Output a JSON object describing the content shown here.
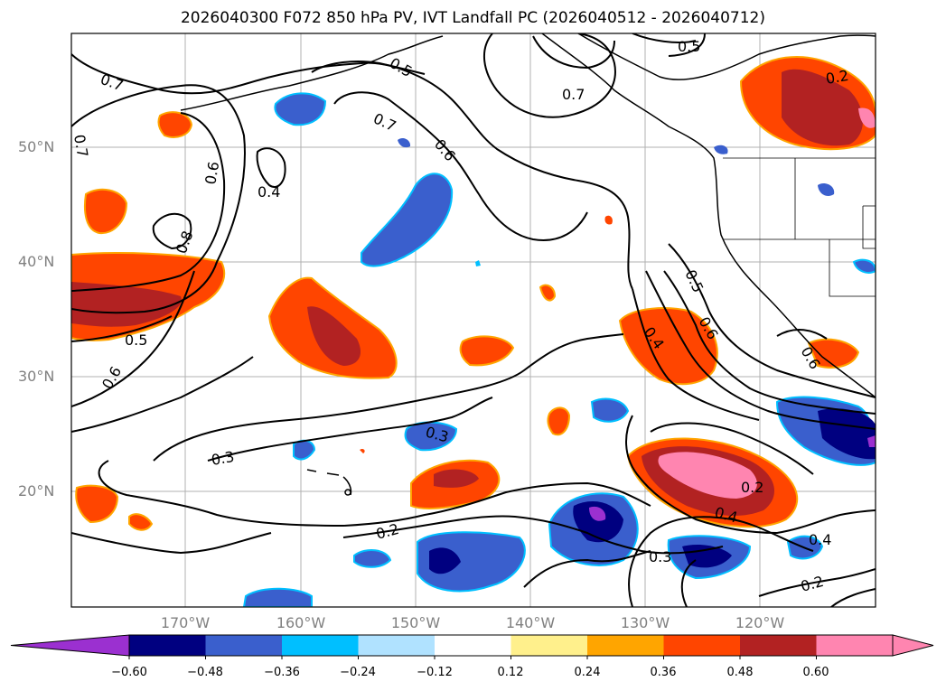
{
  "title": "2026040300 F072 850 hPa PV, IVT Landfall PC (2026040512 - 2026040712)",
  "lat_labels": [
    "50°N",
    "40°N",
    "30°N",
    "20°N"
  ],
  "lon_labels": [
    "170°W",
    "160°W",
    "150°W",
    "140°W",
    "130°W",
    "120°W"
  ],
  "colorbar": {
    "tick_labels": [
      "−0.60",
      "−0.48",
      "−0.36",
      "−0.24",
      "−0.12",
      "0.12",
      "0.24",
      "0.36",
      "0.48",
      "0.60"
    ],
    "colors": [
      "#9b30d0",
      "#000080",
      "#3a5fcd",
      "#00bfff",
      "#b0e2ff",
      "#ffffff",
      "#fff08c",
      "#ffa500",
      "#ff4500",
      "#b22222",
      "#ff85b0",
      "#ff85b0"
    ]
  },
  "contour_labels": [
    {
      "text": "0.5"
    },
    {
      "text": "0.7"
    },
    {
      "text": "0.5"
    },
    {
      "text": "0.7"
    },
    {
      "text": "0.7"
    },
    {
      "text": "0.6"
    },
    {
      "text": "0.7"
    },
    {
      "text": "0.6"
    },
    {
      "text": "0.4"
    },
    {
      "text": "0.8"
    },
    {
      "text": "0.5"
    },
    {
      "text": "0.6"
    },
    {
      "text": "0.3"
    },
    {
      "text": "0.3"
    },
    {
      "text": "0.2"
    },
    {
      "text": "0.5"
    },
    {
      "text": "0.6"
    },
    {
      "text": "0.4"
    },
    {
      "text": "0.2"
    },
    {
      "text": "0.4"
    },
    {
      "text": "0.3"
    },
    {
      "text": "0.4"
    },
    {
      "text": "0.2"
    },
    {
      "text": "0.2"
    },
    {
      "text": "0.6"
    }
  ]
}
